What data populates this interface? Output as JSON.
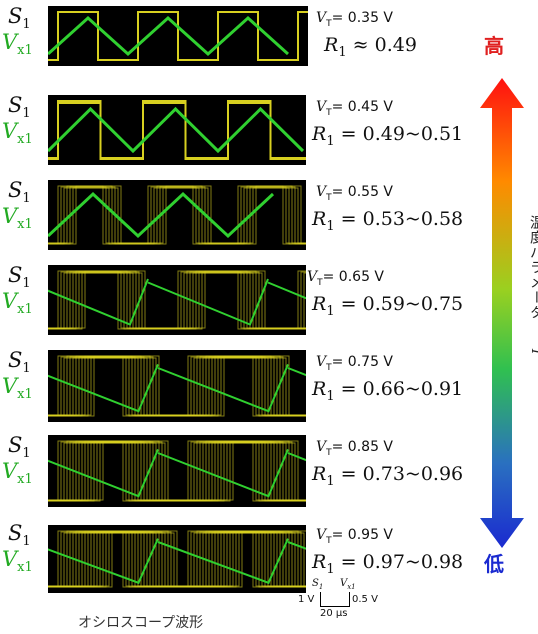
{
  "rows": [
    {
      "s_label": "S",
      "s_sub": "1",
      "v_label": "V",
      "v_sub": "x1",
      "vt_prefix": "V",
      "vt_sub": "T",
      "vt_value": "= 0.35 V",
      "r_label": "R",
      "r_sub": "1",
      "r_value": "≈ 0.49"
    },
    {
      "s_label": "S",
      "s_sub": "1",
      "v_label": "V",
      "v_sub": "x1",
      "vt_prefix": "V",
      "vt_sub": "T",
      "vt_value": "= 0.45 V",
      "r_label": "R",
      "r_sub": "1",
      "r_value": "= 0.49~0.51"
    },
    {
      "s_label": "S",
      "s_sub": "1",
      "v_label": "V",
      "v_sub": "x1",
      "vt_prefix": "V",
      "vt_sub": "T",
      "vt_value": "= 0.55 V",
      "r_label": "R",
      "r_sub": "1",
      "r_value": "= 0.53~0.58"
    },
    {
      "s_label": "S",
      "s_sub": "1",
      "v_label": "V",
      "v_sub": "x1",
      "vt_prefix": "V",
      "vt_sub": "T",
      "vt_value": "= 0.65 V",
      "r_label": "R",
      "r_sub": "1",
      "r_value": "= 0.59~0.75"
    },
    {
      "s_label": "S",
      "s_sub": "1",
      "v_label": "V",
      "v_sub": "x1",
      "vt_prefix": "V",
      "vt_sub": "T",
      "vt_value": "= 0.75 V",
      "r_label": "R",
      "r_sub": "1",
      "r_value": "= 0.66~0.91"
    },
    {
      "s_label": "S",
      "s_sub": "1",
      "v_label": "V",
      "v_sub": "x1",
      "vt_prefix": "V",
      "vt_sub": "T",
      "vt_value": "= 0.85 V",
      "r_label": "R",
      "r_sub": "1",
      "r_value": "= 0.73~0.96"
    },
    {
      "s_label": "S",
      "s_sub": "1",
      "v_label": "V",
      "v_sub": "x1",
      "vt_prefix": "V",
      "vt_sub": "T",
      "vt_value": "= 0.95 V",
      "r_label": "R",
      "r_sub": "1",
      "r_value": "= 0.97~0.98"
    }
  ],
  "arrow": {
    "top_label": "高",
    "bottom_label": "低",
    "axis_text": "温度パラメータ",
    "axis_symbol": "T",
    "top_color": "#e02020",
    "bottom_color": "#1a2ad0"
  },
  "scale_bar": {
    "s_label": "S",
    "s_sub": "1",
    "v_label": "V",
    "v_sub": "x1",
    "left": "1 V",
    "right": "0.5 V",
    "bottom": "20 μs"
  },
  "caption": "オシロスコープ波形",
  "colors": {
    "square": "#d8d020",
    "triangle": "#30d030",
    "scope_bg": "#000000"
  }
}
